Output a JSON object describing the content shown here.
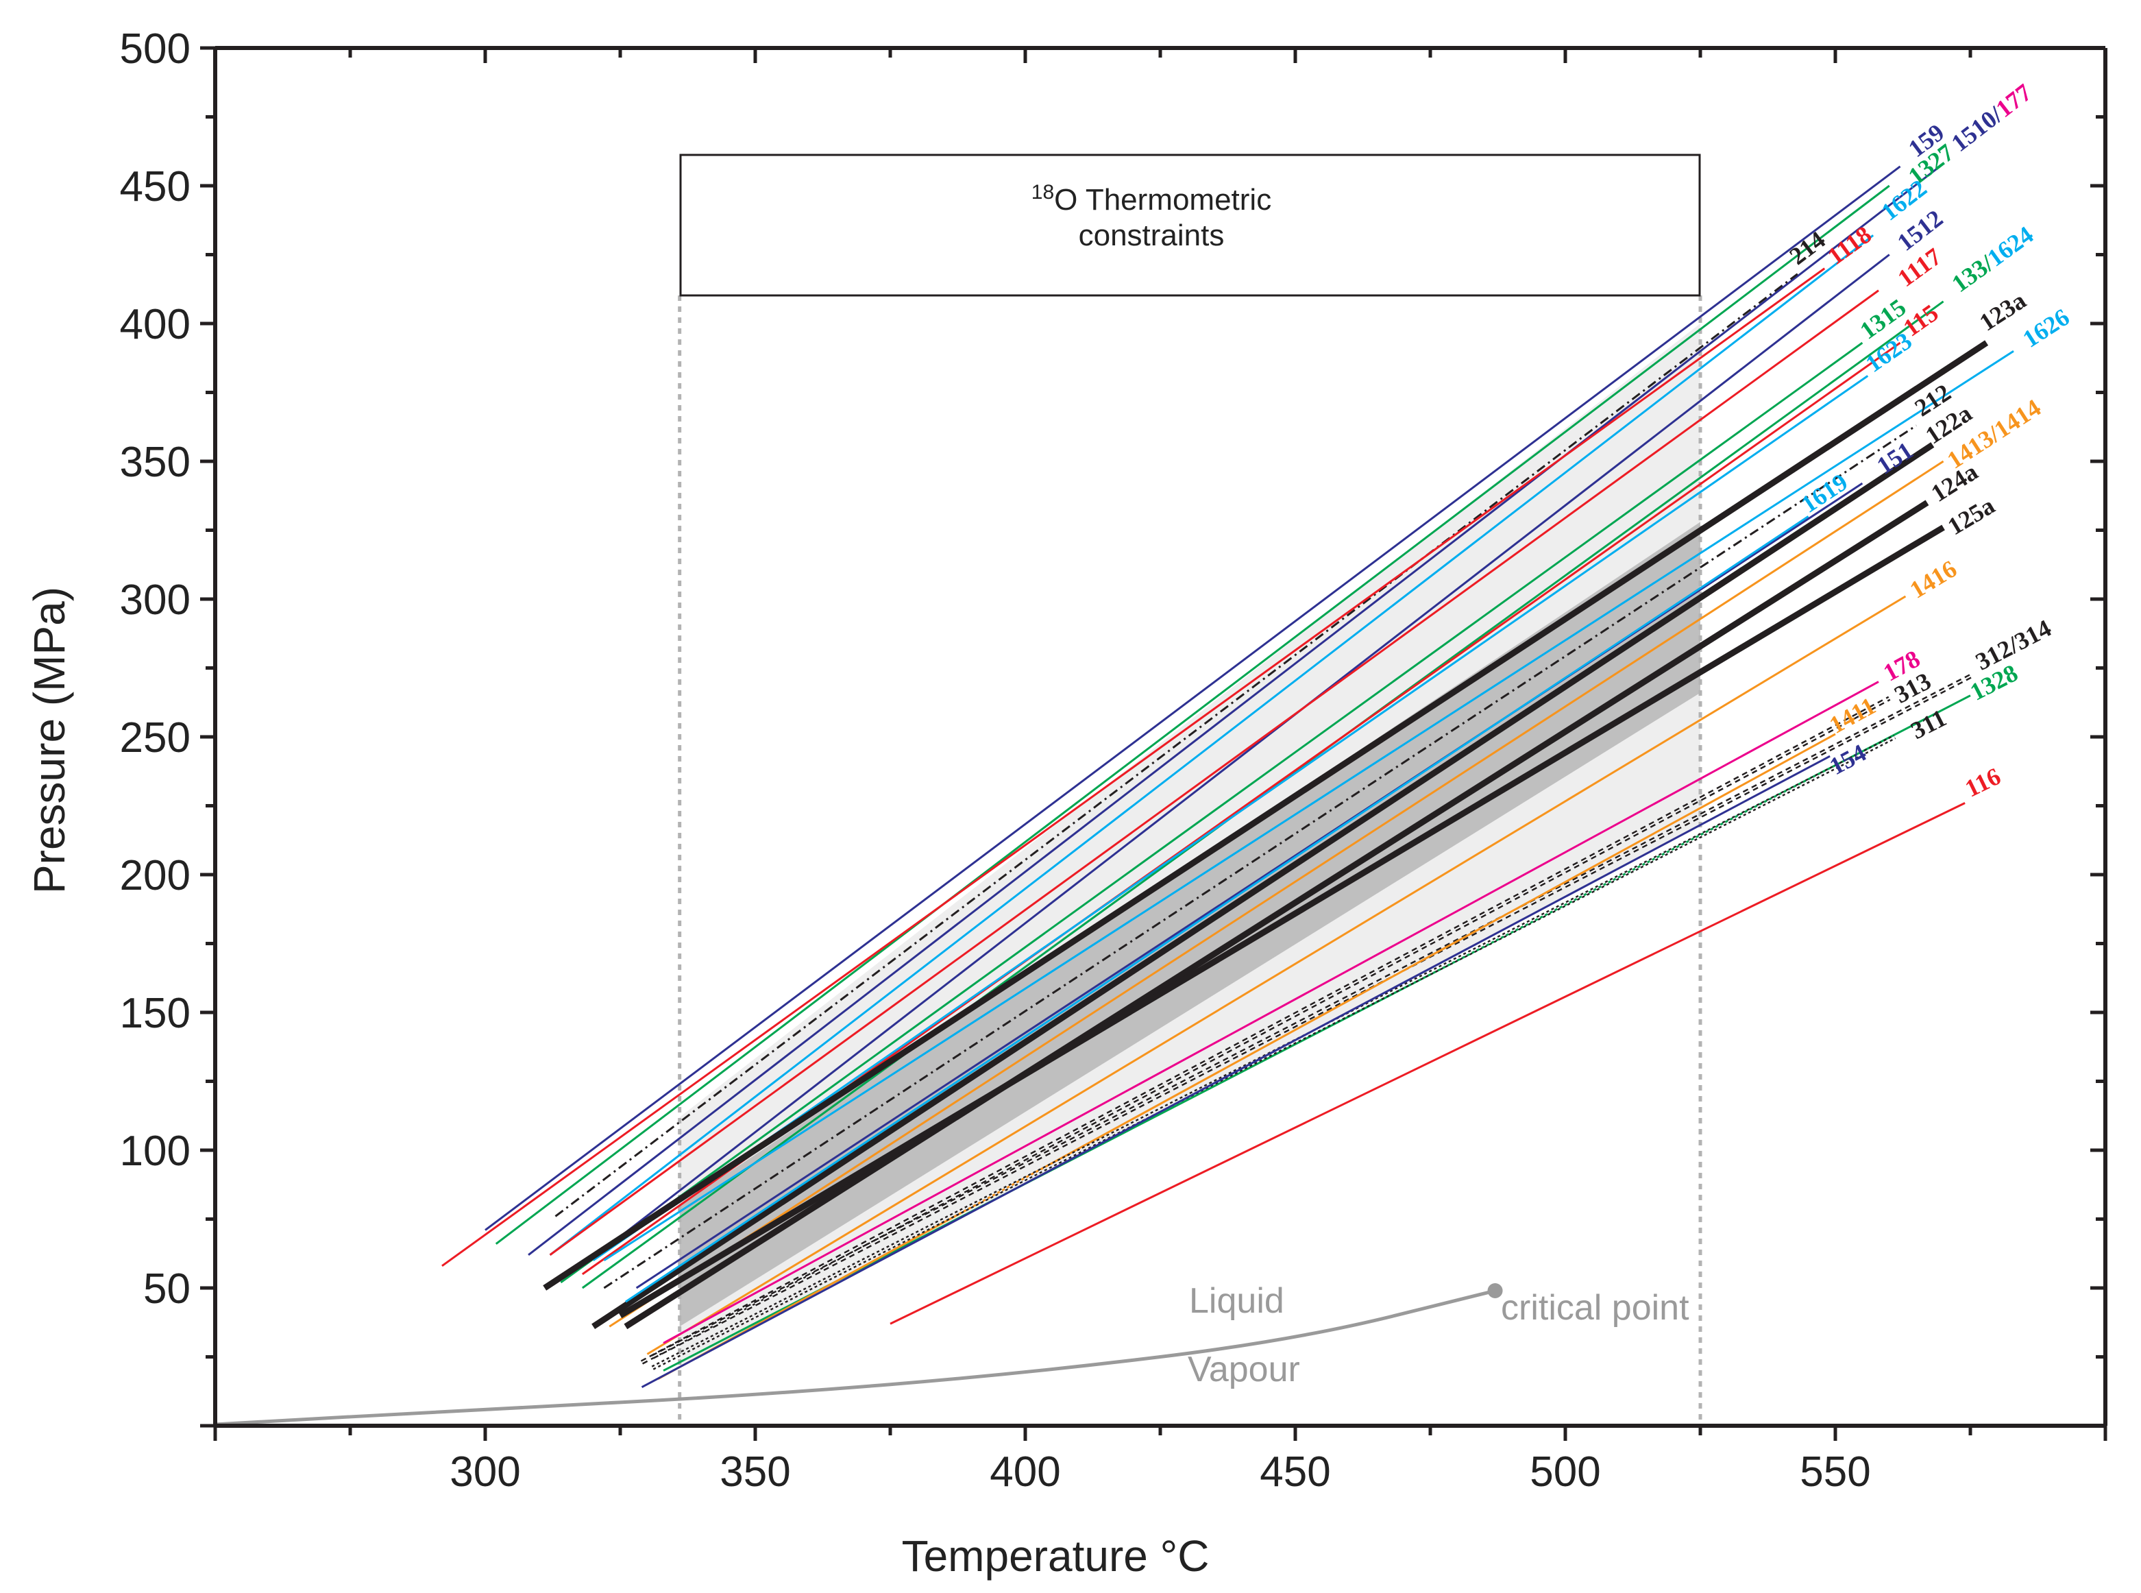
{
  "chart_data": {
    "type": "line",
    "title": "",
    "xlabel": "Temperature  °C",
    "ylabel": "Pressure (MPa)",
    "xlim": [
      250,
      600
    ],
    "ylim": [
      0,
      500
    ],
    "x_ticks": [
      300,
      350,
      400,
      450,
      500,
      550
    ],
    "y_ticks": [
      50,
      100,
      150,
      200,
      250,
      300,
      350,
      400,
      450,
      500
    ],
    "x_tick_labels": [
      "300",
      "350",
      "400",
      "450",
      "500",
      "550"
    ],
    "y_tick_labels": [
      "50",
      "100",
      "150",
      "200",
      "250",
      "300",
      "350",
      "400",
      "450",
      "500"
    ],
    "thermometric_box": {
      "superscript": "18",
      "line1": "O Thermometric",
      "line2": "constraints",
      "t_min": 336,
      "t_max": 525
    },
    "constraint_region": [
      [
        336,
        112
      ],
      [
        525,
        400
      ],
      [
        525,
        218
      ],
      [
        336,
        22
      ]
    ],
    "inner_region": [
      [
        336,
        80
      ],
      [
        525,
        328
      ],
      [
        525,
        266
      ],
      [
        336,
        36
      ]
    ],
    "phase_boundary": {
      "liquid_label": "Liquid",
      "vapour_label": "Vapour",
      "critical_label": "critical point",
      "critical_point": [
        487,
        49
      ],
      "points": [
        [
          250,
          0.5
        ],
        [
          300,
          6
        ],
        [
          350,
          11
        ],
        [
          400,
          19
        ],
        [
          450,
          31
        ],
        [
          487,
          49
        ]
      ]
    },
    "series": [
      {
        "name": "159",
        "color": "#2e3192",
        "width": 3,
        "dash": "",
        "x": [
          300,
          562
        ],
        "y": [
          71,
          457
        ],
        "label_x": 565,
        "label_y": 460
      },
      {
        "name": "1327",
        "color": "#00a651",
        "width": 3,
        "dash": "",
        "x": [
          302,
          560
        ],
        "y": [
          66,
          450
        ],
        "label_x": 565,
        "label_y": 450
      },
      {
        "name": "1510/177",
        "color": "#2e3192",
        "width": 3,
        "dash": "",
        "x": [
          308,
          570
        ],
        "y": [
          62,
          458
        ],
        "label_x": 573,
        "label_y": 462
      },
      {
        "name": "1622",
        "color": "#00aeef",
        "width": 3,
        "dash": "",
        "x": [
          312,
          557
        ],
        "y": [
          62,
          432
        ],
        "label_x": 560,
        "label_y": 437
      },
      {
        "name": "1512",
        "color": "#2e3192",
        "width": 3,
        "dash": "",
        "x": [
          316,
          560
        ],
        "y": [
          55,
          425
        ],
        "label_x": 563,
        "label_y": 426
      },
      {
        "name": "214",
        "color": "#231f20",
        "width": 3,
        "dash": "14 6 3 6",
        "x": [
          313,
          543
        ],
        "y": [
          76,
          418
        ],
        "label_x": 543,
        "label_y": 421
      },
      {
        "name": "1118",
        "color": "#ed1c24",
        "width": 3,
        "dash": "",
        "x": [
          292,
          548
        ],
        "y": [
          58,
          420
        ],
        "label_x": 550,
        "label_y": 421
      },
      {
        "name": "1117",
        "color": "#ed1c24",
        "width": 3,
        "dash": "",
        "x": [
          312,
          558
        ],
        "y": [
          62,
          412
        ],
        "label_x": 563,
        "label_y": 413
      },
      {
        "name": "133/1624",
        "color": "#00a651",
        "width": 3,
        "dash": "",
        "x": [
          318,
          570
        ],
        "y": [
          50,
          408
        ],
        "label_x": 573,
        "label_y": 411
      },
      {
        "name": "1315",
        "color": "#00a651",
        "width": 3,
        "dash": "",
        "x": [
          314,
          555
        ],
        "y": [
          52,
          393
        ],
        "label_x": 556,
        "label_y": 394
      },
      {
        "name": "115",
        "color": "#ed1c24",
        "width": 3,
        "dash": "",
        "x": [
          318,
          562
        ],
        "y": [
          55,
          393
        ],
        "label_x": 564,
        "label_y": 395
      },
      {
        "name": "1623",
        "color": "#00aeef",
        "width": 3,
        "dash": "",
        "x": [
          320,
          556
        ],
        "y": [
          60,
          381
        ],
        "label_x": 557,
        "label_y": 382
      },
      {
        "name": "123a",
        "color": "#231f20",
        "width": 9,
        "dash": "",
        "x": [
          311,
          578
        ],
        "y": [
          50,
          393
        ],
        "label_x": 578,
        "label_y": 397
      },
      {
        "name": "1626",
        "color": "#00aeef",
        "width": 3,
        "dash": "",
        "x": [
          322,
          583
        ],
        "y": [
          60,
          390
        ],
        "label_x": 586,
        "label_y": 391
      },
      {
        "name": "212",
        "color": "#231f20",
        "width": 3,
        "dash": "14 6 3 6",
        "x": [
          322,
          565
        ],
        "y": [
          50,
          363
        ],
        "label_x": 566,
        "label_y": 366
      },
      {
        "name": "122a",
        "color": "#231f20",
        "width": 9,
        "dash": "",
        "x": [
          320,
          568
        ],
        "y": [
          36,
          356
        ],
        "label_x": 568,
        "label_y": 356
      },
      {
        "name": "1413/1414",
        "color": "#f7941d",
        "width": 3,
        "dash": "",
        "x": [
          323,
          570
        ],
        "y": [
          36,
          350
        ],
        "label_x": 572,
        "label_y": 347
      },
      {
        "name": "151",
        "color": "#2e3192",
        "width": 3,
        "dash": "",
        "x": [
          328,
          555
        ],
        "y": [
          50,
          342
        ],
        "label_x": 559,
        "label_y": 345
      },
      {
        "name": "1619",
        "color": "#00aeef",
        "width": 3,
        "dash": "",
        "x": [
          326,
          545
        ],
        "y": [
          45,
          330
        ],
        "label_x": 545,
        "label_y": 331
      },
      {
        "name": "124a",
        "color": "#231f20",
        "width": 9,
        "dash": "",
        "x": [
          326,
          567
        ],
        "y": [
          36,
          335
        ],
        "label_x": 569,
        "label_y": 335
      },
      {
        "name": "125a",
        "color": "#231f20",
        "width": 9,
        "dash": "",
        "x": [
          325,
          570
        ],
        "y": [
          40,
          326
        ],
        "label_x": 572,
        "label_y": 323
      },
      {
        "name": "1416",
        "color": "#f7941d",
        "width": 3,
        "dash": "",
        "x": [
          330,
          563
        ],
        "y": [
          26,
          301
        ],
        "label_x": 565,
        "label_y": 300
      },
      {
        "name": "178",
        "color": "#ec008c",
        "width": 3,
        "dash": "",
        "x": [
          333,
          558
        ],
        "y": [
          30,
          270
        ],
        "label_x": 560,
        "label_y": 270
      },
      {
        "name": "313",
        "color": "#231f20",
        "width": 7,
        "dash": "8 6",
        "x": [
          329,
          560
        ],
        "y": [
          23,
          264
        ],
        "label_x": 562,
        "label_y": 262
      },
      {
        "name": "312/314",
        "color": "#231f20",
        "width": 7,
        "dash": "8 6",
        "x": [
          331,
          575
        ],
        "y": [
          25,
          272
        ],
        "label_x": 577,
        "label_y": 274
      },
      {
        "name": "1328",
        "color": "#00a651",
        "width": 3,
        "dash": "",
        "x": [
          333,
          575
        ],
        "y": [
          20,
          265
        ],
        "label_x": 576,
        "label_y": 263
      },
      {
        "name": "1411",
        "color": "#f7941d",
        "width": 3,
        "dash": "",
        "x": [
          332,
          550
        ],
        "y": [
          17,
          251
        ],
        "label_x": 550,
        "label_y": 251
      },
      {
        "name": "311",
        "color": "#231f20",
        "width": 7,
        "dash": "4 4",
        "x": [
          331,
          561
        ],
        "y": [
          21,
          250
        ],
        "label_x": 565,
        "label_y": 249
      },
      {
        "name": "154",
        "color": "#2e3192",
        "width": 3,
        "dash": "",
        "x": [
          329,
          549
        ],
        "y": [
          14,
          243
        ],
        "label_x": 550,
        "label_y": 236
      },
      {
        "name": "116",
        "color": "#ed1c24",
        "width": 3,
        "dash": "",
        "x": [
          375,
          574
        ],
        "y": [
          37,
          226
        ],
        "label_x": 575,
        "label_y": 228
      }
    ]
  }
}
